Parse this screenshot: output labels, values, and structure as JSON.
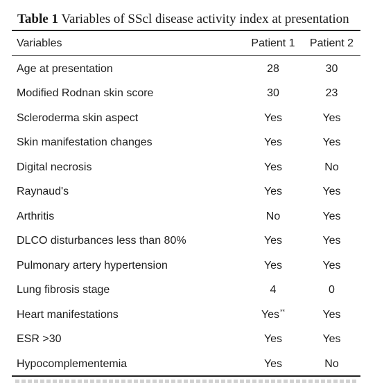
{
  "caption": {
    "label": "Table 1",
    "text": "Variables of SScl disease activity index at presentation"
  },
  "columns": [
    "Variables",
    "Patient 1",
    "Patient 2"
  ],
  "rows": [
    {
      "variable": "Age at presentation",
      "p1": "28",
      "p2": "30"
    },
    {
      "variable": "Modified Rodnan skin score",
      "p1": "30",
      "p2": "23"
    },
    {
      "variable": "Scleroderma skin aspect",
      "p1": "Yes",
      "p2": "Yes"
    },
    {
      "variable": "Skin manifestation changes",
      "p1": "Yes",
      "p2": "Yes"
    },
    {
      "variable": "Digital necrosis",
      "p1": "Yes",
      "p2": "No"
    },
    {
      "variable": "Raynaud's",
      "p1": "Yes",
      "p2": "Yes"
    },
    {
      "variable": "Arthritis",
      "p1": "No",
      "p2": "Yes"
    },
    {
      "variable": "DLCO disturbances less than 80%",
      "p1": "Yes",
      "p2": "Yes"
    },
    {
      "variable": "Pulmonary artery hypertension",
      "p1": "Yes",
      "p2": "Yes"
    },
    {
      "variable": "Lung fibrosis stage",
      "p1": "4",
      "p2": "0"
    },
    {
      "variable": "Heart manifestations",
      "p1": "Yes",
      "p1_sup": "**",
      "p2": "Yes"
    },
    {
      "variable": "ESR >30",
      "p1": "Yes",
      "p2": "Yes"
    },
    {
      "variable": "Hypocomplementemia",
      "p1": "Yes",
      "p2": "No"
    }
  ]
}
